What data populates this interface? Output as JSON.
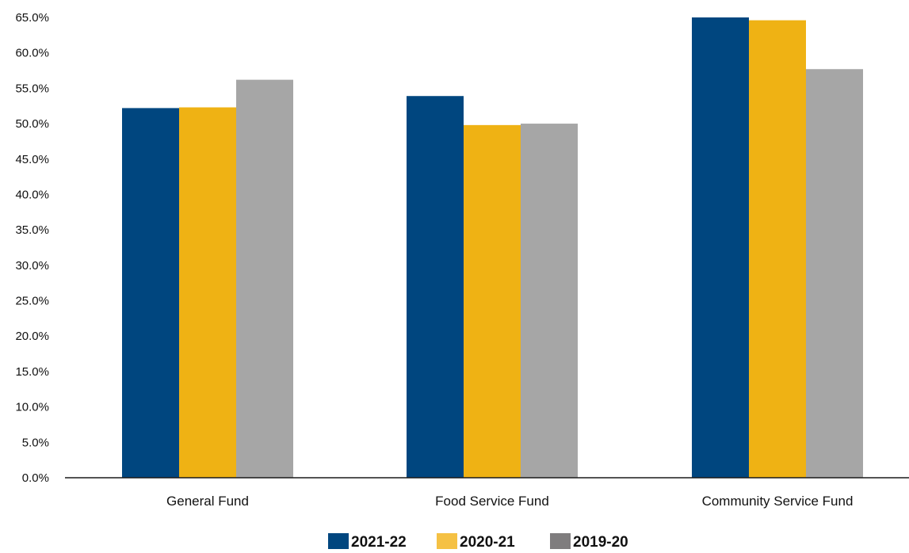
{
  "chart_data": {
    "type": "bar",
    "title": "",
    "xlabel": "",
    "ylabel": "",
    "categories": [
      "General Fund",
      "Food Service Fund",
      "Community Service Fund"
    ],
    "series": [
      {
        "name": "2021-22",
        "color": "#00467f",
        "values": [
          52.2,
          53.9,
          65.0
        ]
      },
      {
        "name": "2020-21",
        "color": "#efb214",
        "values": [
          52.3,
          49.8,
          64.6
        ]
      },
      {
        "name": "2019-20",
        "color": "#a6a6a6",
        "values": [
          56.2,
          50.0,
          57.7
        ]
      }
    ],
    "legend_swatch_colors": [
      "#00467f",
      "#f5c144",
      "#7f7d7e"
    ],
    "ylim": [
      0,
      65
    ],
    "yticks": [
      0,
      5,
      10,
      15,
      20,
      25,
      30,
      35,
      40,
      45,
      50,
      55,
      60,
      65
    ],
    "ytick_labels": [
      "0.0%",
      "5.0%",
      "10.0%",
      "15.0%",
      "20.0%",
      "25.0%",
      "30.0%",
      "35.0%",
      "40.0%",
      "45.0%",
      "50.0%",
      "55.0%",
      "60.0%",
      "65.0%"
    ],
    "grid": false,
    "legend_position": "bottom-center"
  }
}
